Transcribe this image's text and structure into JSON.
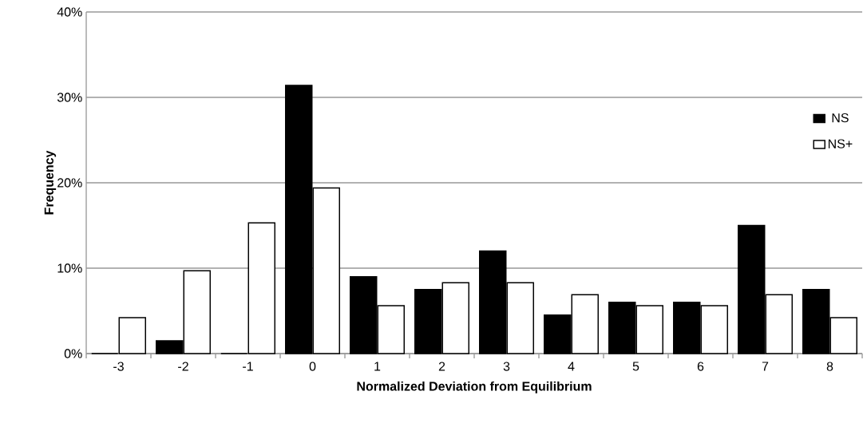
{
  "chart_data": {
    "type": "bar",
    "xlabel": "Normalized Deviation from Equilibrium",
    "ylabel": "Frequency",
    "categories": [
      "-3",
      "-2",
      "-1",
      "0",
      "1",
      "2",
      "3",
      "4",
      "5",
      "6",
      "7",
      "8"
    ],
    "series": [
      {
        "name": "NS",
        "color": "#000000",
        "values": [
          0,
          1.5,
          0,
          31.4,
          9.0,
          7.5,
          12.0,
          4.5,
          6.0,
          6.0,
          15.0,
          7.5
        ]
      },
      {
        "name": "NS+",
        "color": "#ffffff",
        "values": [
          4.2,
          9.7,
          15.3,
          19.4,
          5.6,
          8.3,
          8.3,
          6.9,
          5.6,
          5.6,
          6.9,
          4.2
        ]
      }
    ],
    "ylim": [
      0,
      40
    ],
    "yticks": [
      {
        "value": 0,
        "label": "0%"
      },
      {
        "value": 10,
        "label": "10%"
      },
      {
        "value": 20,
        "label": "20%"
      },
      {
        "value": 30,
        "label": "30%"
      },
      {
        "value": 40,
        "label": "40%"
      }
    ],
    "grid": "y",
    "legend": "right"
  }
}
